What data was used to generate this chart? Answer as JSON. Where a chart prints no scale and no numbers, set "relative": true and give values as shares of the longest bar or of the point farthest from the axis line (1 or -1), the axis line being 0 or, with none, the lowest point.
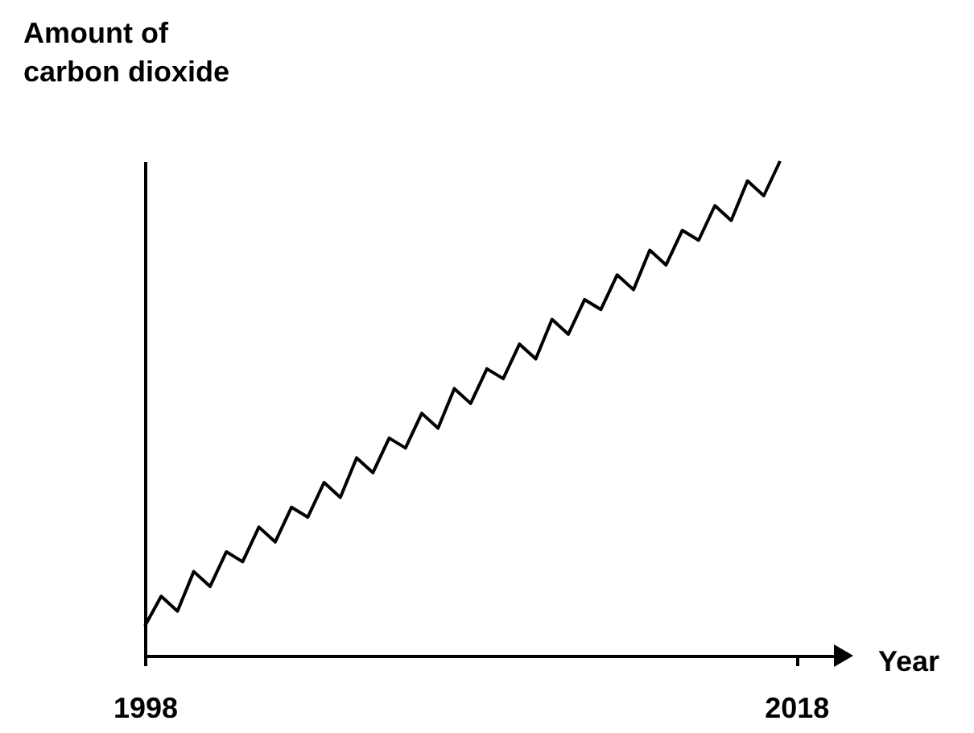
{
  "chart_data": {
    "type": "line",
    "xlabel": "Year",
    "ylabel": "Amount of\ncarbon dioxide",
    "relative": true,
    "color": "#000000",
    "x": [
      1998,
      1998.5,
      1999,
      1999.5,
      2000,
      2000.5,
      2001,
      2001.5,
      2002,
      2002.5,
      2003,
      2003.5,
      2004,
      2004.5,
      2005,
      2005.5,
      2006,
      2006.5,
      2007,
      2007.5,
      2008,
      2008.5,
      2009,
      2009.5,
      2010,
      2010.5,
      2011,
      2011.5,
      2012,
      2012.5,
      2013,
      2013.5,
      2014,
      2014.5,
      2015,
      2015.5,
      2016,
      2016.5,
      2017,
      2017.5
    ],
    "values": [
      0.06,
      0.12,
      0.09,
      0.17,
      0.14,
      0.21,
      0.19,
      0.26,
      0.23,
      0.3,
      0.28,
      0.35,
      0.32,
      0.4,
      0.37,
      0.44,
      0.42,
      0.49,
      0.46,
      0.54,
      0.51,
      0.58,
      0.56,
      0.63,
      0.6,
      0.68,
      0.65,
      0.72,
      0.7,
      0.77,
      0.74,
      0.82,
      0.79,
      0.86,
      0.84,
      0.91,
      0.88,
      0.96,
      0.93,
      1.0
    ],
    "xlim": [
      1998,
      2019.5
    ],
    "xticks": [
      1998,
      2018
    ]
  }
}
